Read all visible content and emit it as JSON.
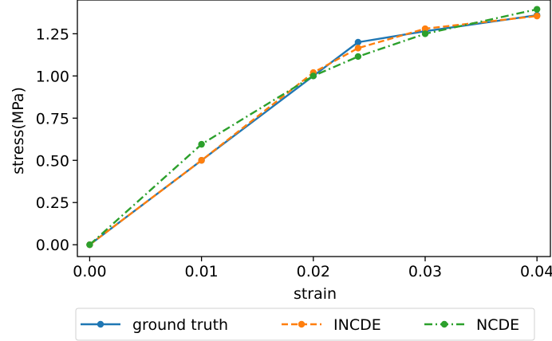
{
  "chart_data": {
    "type": "line",
    "title": "",
    "xlabel": "strain",
    "ylabel": "stress(MPa)",
    "xlim": [
      -0.0011,
      0.0412
    ],
    "ylim": [
      -0.07,
      1.45
    ],
    "x_ticks": [
      0.0,
      0.01,
      0.02,
      0.03,
      0.04
    ],
    "x_tick_labels": [
      "0.00",
      "0.01",
      "0.02",
      "0.03",
      "0.04"
    ],
    "y_ticks": [
      0.0,
      0.25,
      0.5,
      0.75,
      1.0,
      1.25
    ],
    "y_tick_labels": [
      "0.00",
      "0.25",
      "0.50",
      "0.75",
      "1.00",
      "1.25"
    ],
    "grid": false,
    "legend_position": "bottom-center",
    "series": [
      {
        "name": "ground truth",
        "color": "#1f77b4",
        "line_style": "solid",
        "x": [
          0.0,
          0.01,
          0.02,
          0.024,
          0.03,
          0.04
        ],
        "y": [
          0.0,
          0.5,
          1.0,
          1.2,
          1.265,
          1.36
        ]
      },
      {
        "name": "INCDE",
        "color": "#ff7f0e",
        "line_style": "dashed",
        "x": [
          0.0,
          0.01,
          0.02,
          0.024,
          0.03,
          0.04
        ],
        "y": [
          0.0,
          0.5,
          1.02,
          1.165,
          1.28,
          1.355
        ]
      },
      {
        "name": "NCDE",
        "color": "#2ca02c",
        "line_style": "dashdot",
        "x": [
          0.0,
          0.01,
          0.02,
          0.024,
          0.03,
          0.04
        ],
        "y": [
          0.0,
          0.595,
          1.0,
          1.115,
          1.25,
          1.395
        ]
      }
    ]
  }
}
